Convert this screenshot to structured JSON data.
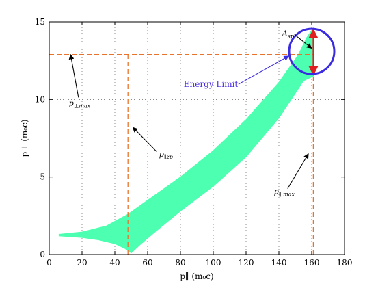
{
  "chart_data": {
    "type": "area",
    "xlim": [
      0,
      180
    ],
    "ylim": [
      0,
      15
    ],
    "x_ticks": [
      0,
      20,
      40,
      60,
      80,
      100,
      120,
      140,
      160,
      180
    ],
    "y_ticks": [
      0,
      5,
      10,
      15
    ],
    "grid": true,
    "xlabel": "p∥ (m₀c)",
    "ylabel": "p⊥ (m₀c)",
    "region": {
      "color": "#4dffb0",
      "upper_boundary": [
        [
          6,
          1.3
        ],
        [
          20,
          1.45
        ],
        [
          35,
          1.85
        ],
        [
          48,
          2.6
        ],
        [
          60,
          3.5
        ],
        [
          80,
          5.0
        ],
        [
          100,
          6.7
        ],
        [
          120,
          8.7
        ],
        [
          140,
          11.1
        ],
        [
          152,
          12.9
        ],
        [
          157,
          14.0
        ],
        [
          161,
          14.6
        ]
      ],
      "lower_boundary": [
        [
          161,
          11.5
        ],
        [
          155,
          11.2
        ],
        [
          150,
          10.4
        ],
        [
          140,
          8.8
        ],
        [
          120,
          6.3
        ],
        [
          100,
          4.4
        ],
        [
          80,
          2.8
        ],
        [
          65,
          1.5
        ],
        [
          55,
          0.6
        ],
        [
          50,
          0.1
        ],
        [
          46,
          0.4
        ],
        [
          40,
          0.7
        ],
        [
          30,
          0.95
        ],
        [
          20,
          1.1
        ],
        [
          6,
          1.2
        ]
      ]
    },
    "reference_lines": [
      {
        "name": "p_perp_max",
        "orientation": "horizontal",
        "value": 12.9,
        "from": 0,
        "to": 161,
        "color": "#e8732a"
      },
      {
        "name": "p_par_zp",
        "orientation": "vertical",
        "value": 48,
        "from": 0,
        "to": 12.9,
        "color": "#e8732a"
      },
      {
        "name": "p_par_max",
        "orientation": "vertical",
        "value": 161,
        "from": 0,
        "to": 14.6,
        "color": "#e8732a"
      }
    ],
    "energy_limit_circle": {
      "cx": 160,
      "cy": 13.1,
      "color": "#3a2be0"
    },
    "asp_arrow": {
      "x": 161,
      "y_top": 14.6,
      "y_bottom": 11.5,
      "color": "#e02020"
    },
    "annotations": [
      {
        "id": "p_perp_max",
        "text_main": "p",
        "text_sub": "⊥max",
        "x": 12,
        "y": 9.6,
        "arrow_to": [
          13,
          12.9
        ]
      },
      {
        "id": "p_par_zp",
        "text_main": "p",
        "text_sub": "∥zp",
        "x": 67,
        "y": 6.3,
        "arrow_to": [
          51,
          8.2
        ]
      },
      {
        "id": "p_par_max",
        "text_main": "p",
        "text_sub": "∥ max",
        "x": 137,
        "y": 3.9,
        "arrow_to": [
          158,
          6.5
        ]
      },
      {
        "id": "asp",
        "text_main": "A",
        "text_sub": "sp",
        "x": 142,
        "y": 14.1,
        "arrow_to": [
          160,
          13.3
        ]
      },
      {
        "id": "energy_limit",
        "text_main": "Energy Limit",
        "text_sub": "",
        "x": 82,
        "y": 10.8,
        "arrow_to": [
          146,
          12.8
        ]
      }
    ]
  }
}
